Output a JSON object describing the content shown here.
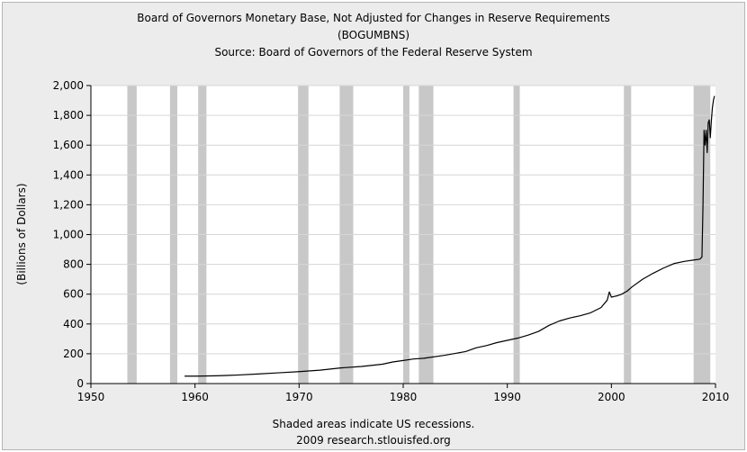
{
  "chart_data": {
    "type": "line",
    "title": "Board of Governors Monetary Base, Not Adjusted for Changes in Reserve Requirements",
    "subtitle": "(BOGUMBNS)",
    "source": "Source: Board of Governors of the Federal Reserve System",
    "xlabel": "",
    "ylabel": "(Billions of Dollars)",
    "xlim": [
      1950,
      2010
    ],
    "ylim": [
      0,
      2000
    ],
    "x_ticks": [
      1950,
      1960,
      1970,
      1980,
      1990,
      2000,
      2010
    ],
    "x_tick_labels": [
      "1950",
      "1960",
      "1970",
      "1980",
      "1990",
      "2000",
      "2010"
    ],
    "y_ticks": [
      0,
      200,
      400,
      600,
      800,
      1000,
      1200,
      1400,
      1600,
      1800,
      2000
    ],
    "y_tick_labels": [
      "0",
      "200",
      "400",
      "600",
      "800",
      "1,000",
      "1,200",
      "1,400",
      "1,600",
      "1,800",
      "2,000"
    ],
    "grid": true,
    "legend": "none",
    "colors": {
      "line": "#000000",
      "recession": "#c8c8c8",
      "plot_background": "#ffffff",
      "gridline": "#d6d6d6",
      "panel": "#ececec"
    },
    "recessions": [
      [
        1953.5,
        1954.4
      ],
      [
        1957.6,
        1958.3
      ],
      [
        1960.3,
        1961.1
      ],
      [
        1969.9,
        1970.9
      ],
      [
        1973.9,
        1975.2
      ],
      [
        1980.0,
        1980.6
      ],
      [
        1981.5,
        1982.9
      ],
      [
        1990.6,
        1991.2
      ],
      [
        2001.2,
        2001.9
      ],
      [
        2007.9,
        2009.5
      ]
    ],
    "series": [
      {
        "x": [
          1959.0,
          1960.0,
          1962.0,
          1964.0,
          1966.0,
          1968.0,
          1970.0,
          1972.0,
          1974.0,
          1976.0,
          1978.0,
          1979.0,
          1980.0,
          1981.0,
          1982.0,
          1984.0,
          1986.0,
          1987.0,
          1988.0,
          1989.0,
          1990.0,
          1991.0,
          1992.0,
          1993.0,
          1994.0,
          1995.0,
          1996.0,
          1997.0,
          1998.0,
          1999.0,
          1999.6,
          1999.8,
          2000.0,
          2000.3,
          2000.6,
          2001.0,
          2001.5,
          2002.0,
          2003.0,
          2004.0,
          2005.0,
          2006.0,
          2007.0,
          2008.0,
          2008.5,
          2008.7,
          2008.8,
          2008.9,
          2009.0,
          2009.1,
          2009.2,
          2009.3,
          2009.4,
          2009.5,
          2009.6,
          2009.7,
          2009.8,
          2009.9
        ],
        "values": [
          50,
          50,
          52,
          57,
          64,
          72,
          80,
          90,
          105,
          115,
          130,
          145,
          155,
          165,
          170,
          190,
          215,
          240,
          255,
          275,
          290,
          305,
          325,
          350,
          390,
          420,
          440,
          455,
          475,
          510,
          560,
          615,
          580,
          585,
          590,
          600,
          620,
          650,
          700,
          740,
          775,
          805,
          820,
          830,
          835,
          850,
          1200,
          1700,
          1600,
          1700,
          1550,
          1750,
          1770,
          1650,
          1760,
          1850,
          1900,
          1930
        ]
      }
    ],
    "footer": [
      "Shaded areas indicate US recessions.",
      "2009 research.stlouisfed.org"
    ]
  }
}
